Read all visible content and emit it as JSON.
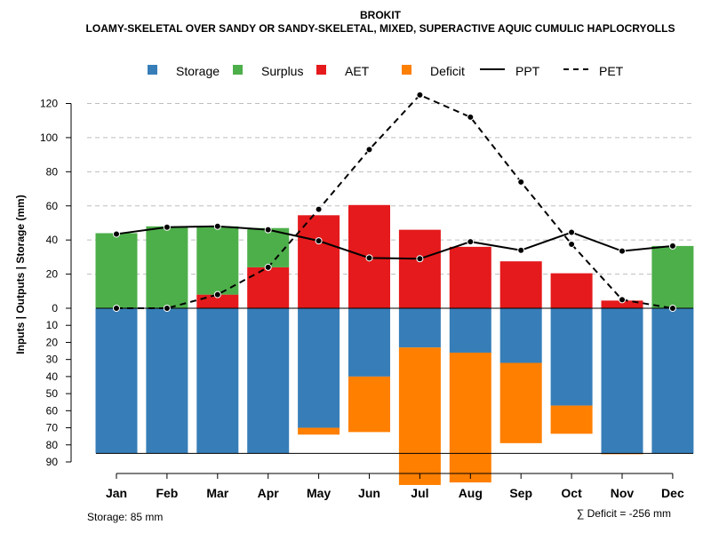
{
  "chart_data": {
    "type": "bar",
    "title": "BROKIT",
    "subtitle": "LOAMY-SKELETAL OVER SANDY OR SANDY-SKELETAL, MIXED, SUPERACTIVE AQUIC CUMULIC HAPLOCRYOLLS",
    "ylabel": "Inputs | Outputs | Storage     (mm)",
    "categories": [
      "Jan",
      "Feb",
      "Mar",
      "Apr",
      "May",
      "Jun",
      "Jul",
      "Aug",
      "Sep",
      "Oct",
      "Nov",
      "Dec"
    ],
    "ylim_upper": [
      0,
      130
    ],
    "ylim_lower": [
      0,
      90
    ],
    "yticks_upper": [
      "0",
      "20",
      "40",
      "60",
      "80",
      "100",
      "120"
    ],
    "yticks_lower": [
      "10",
      "20",
      "30",
      "40",
      "50",
      "60",
      "70",
      "80",
      "90"
    ],
    "storage_capacity": 85,
    "series": [
      {
        "name": "Surplus",
        "color": "#4daf4a",
        "values": [
          44,
          48,
          40,
          23,
          0,
          0,
          0,
          0,
          0,
          0,
          0,
          36.5
        ]
      },
      {
        "name": "AET",
        "color": "#e41a1c",
        "values": [
          0,
          0,
          8,
          24,
          54.5,
          60.5,
          46,
          36,
          27.5,
          20.5,
          4.5,
          0
        ]
      },
      {
        "name": "Storage",
        "color": "#377eb8",
        "values": [
          85,
          85,
          85,
          85,
          70,
          40,
          23,
          26,
          32,
          57,
          85,
          85
        ]
      },
      {
        "name": "Deficit",
        "color": "#ff7f00",
        "values": [
          0,
          0,
          0,
          0,
          4,
          32.5,
          80.5,
          76,
          47,
          16.5,
          0.5,
          0
        ]
      },
      {
        "name": "PPT",
        "style": "solid",
        "values": [
          43.5,
          47.5,
          48,
          46,
          39.5,
          29.5,
          29,
          39,
          34,
          44.5,
          33.5,
          36.5
        ]
      },
      {
        "name": "PET",
        "style": "dashed",
        "values": [
          0,
          0,
          8,
          24,
          58,
          93,
          125,
          112,
          74,
          37.5,
          5,
          0
        ]
      }
    ],
    "legend": [
      "Storage",
      "Surplus",
      "AET",
      "Deficit",
      "PPT",
      "PET"
    ],
    "storage_label": "Storage: 85 mm",
    "deficit_label": "∑ Deficit = -256 mm"
  }
}
